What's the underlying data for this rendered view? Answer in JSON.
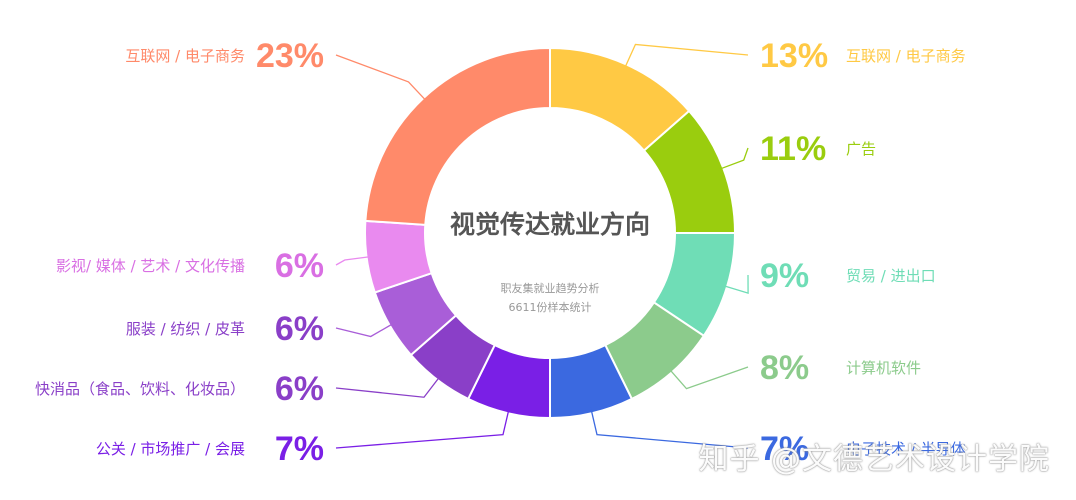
{
  "chart_data": {
    "type": "pie",
    "title": "视觉传达就业方向",
    "subtitle_lines": [
      "职友集就业趋势分析",
      "6611份样本统计"
    ],
    "slices": [
      {
        "label": "互联网 / 电子商务",
        "percent_label": "13%",
        "value": 13,
        "color": "#FFC944"
      },
      {
        "label": "广告",
        "percent_label": "11%",
        "value": 11,
        "color": "#9ACD0E"
      },
      {
        "label": "贸易 / 进出口",
        "percent_label": "9%",
        "value": 9,
        "color": "#6FDDB6"
      },
      {
        "label": "计算机软件",
        "percent_label": "8%",
        "value": 8,
        "color": "#8CCB8C"
      },
      {
        "label": "电子技术 / 半导体",
        "percent_label": "7%",
        "value": 7,
        "color": "#3B69E0"
      },
      {
        "label": "公关 / 市场推广 / 会展",
        "percent_label": "7%",
        "value": 7,
        "color": "#7A1FE6"
      },
      {
        "label": "快消品（食品、饮料、化妆品）",
        "percent_label": "6%",
        "value": 6,
        "color": "#8A3FC8"
      },
      {
        "label": "服装 / 纺织 / 皮革",
        "percent_label": "6%",
        "value": 6,
        "color": "#A95ED8"
      },
      {
        "label": "影视/ 媒体 / 艺术 / 文化传播",
        "percent_label": "6%",
        "value": 6,
        "color": "#E98AEF"
      },
      {
        "label": "互联网 / 电子商务",
        "percent_label": "23%",
        "value": 23,
        "color": "#FF8A6A"
      }
    ]
  },
  "watermark": "知乎 @文德艺术设计学院",
  "colors": {
    "title": "#555555",
    "subtitle": "#999999",
    "leader": "#bbbbbb"
  }
}
